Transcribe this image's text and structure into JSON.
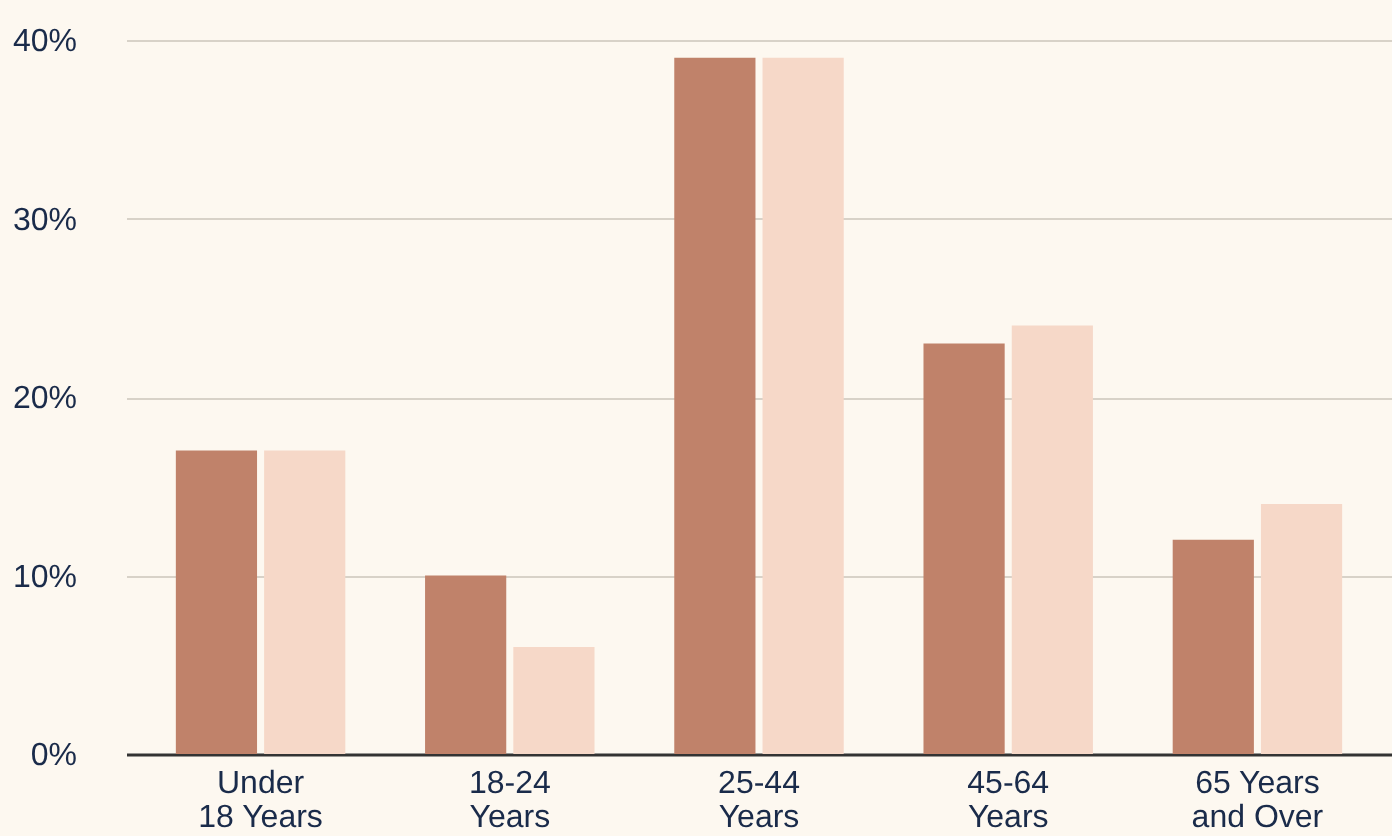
{
  "chart_data": {
    "type": "bar",
    "categories": [
      "Under 18 Years",
      "18-24 Years",
      "25-44 Years",
      "45-64 Years",
      "65 Years and Over"
    ],
    "series": [
      {
        "color": "#c0826a",
        "values": [
          17,
          10,
          39,
          23,
          12
        ]
      },
      {
        "color": "#f6d8c8",
        "values": [
          17,
          6,
          39,
          24,
          14
        ]
      }
    ],
    "ylim": [
      0,
      40
    ],
    "yticks": [
      {
        "value": 0,
        "label": "0%"
      },
      {
        "value": 10,
        "label": "10%"
      },
      {
        "value": 20,
        "label": "20%"
      },
      {
        "value": 30,
        "label": "30%"
      },
      {
        "value": 40,
        "label": "40%"
      }
    ],
    "grid": "y",
    "legend": false
  }
}
